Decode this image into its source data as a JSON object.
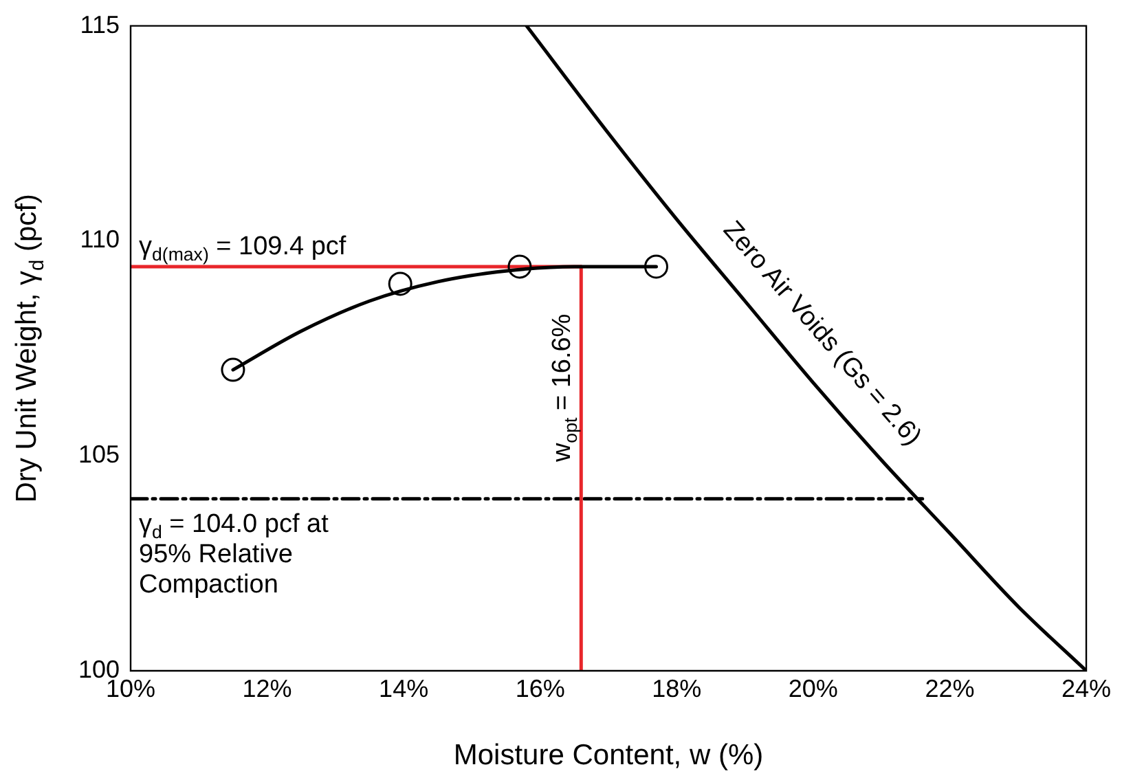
{
  "chart_data": {
    "type": "scatter",
    "xlabel": "Moisture Content, w (%)",
    "ylabel": "Dry Unit Weight, γ$_{d}$ (pcf)",
    "xlim": [
      10,
      24
    ],
    "ylim": [
      100,
      115
    ],
    "xticks": [
      {
        "value": 10,
        "label": "10%"
      },
      {
        "value": 12,
        "label": "12%"
      },
      {
        "value": 14,
        "label": "14%"
      },
      {
        "value": 16,
        "label": "16%"
      },
      {
        "value": 18,
        "label": "18%"
      },
      {
        "value": 20,
        "label": "20%"
      },
      {
        "value": 22,
        "label": "22%"
      },
      {
        "value": 24,
        "label": "24%"
      }
    ],
    "yticks": [
      100,
      105,
      110,
      115
    ],
    "grid": false,
    "legend": false,
    "series": [
      {
        "type": "scatter",
        "color": "#000000",
        "marker": "circle",
        "x": [
          11.5,
          13.95,
          15.7,
          17.7
        ],
        "values": [
          107.0,
          109.0,
          109.4,
          109.4
        ]
      },
      {
        "type": "line",
        "color": "#000000",
        "marker": "none",
        "line_style": "solid",
        "x": [
          11.5,
          12.5,
          13.5,
          14.5,
          15.5,
          16.5,
          17.7
        ],
        "values": [
          107.0,
          107.9,
          108.6,
          109.05,
          109.3,
          109.4,
          109.4
        ]
      },
      {
        "type": "line",
        "name": "γ$_{d(max)}$ = 109.4 pcf",
        "color": "#e8262a",
        "marker": "none",
        "line_style": "solid",
        "x": [
          10,
          16.6
        ],
        "values": [
          109.4,
          109.4
        ]
      },
      {
        "type": "line",
        "name": "w$_{opt}$ = 16.6%",
        "color": "#e8262a",
        "marker": "none",
        "line_style": "solid",
        "x": [
          16.6,
          16.6
        ],
        "values": [
          100,
          109.4
        ]
      },
      {
        "type": "line",
        "name": "γ$_{d}$ = 104.0 pcf at 95% Relative Compaction",
        "color": "#000000",
        "marker": "none",
        "line_style": "dashed",
        "x": [
          10,
          21.6
        ],
        "values": [
          104,
          104
        ]
      },
      {
        "type": "line",
        "name": "Zero Air Voids (Gs = 2.6)",
        "color": "#000000",
        "marker": "none",
        "line_style": "solid",
        "x": [
          15.8,
          17,
          18,
          19,
          20,
          21,
          22,
          23,
          24
        ],
        "values": [
          115,
          112.5,
          110.5,
          108.6,
          106.7,
          104.9,
          103.2,
          101.5,
          100
        ]
      }
    ]
  }
}
